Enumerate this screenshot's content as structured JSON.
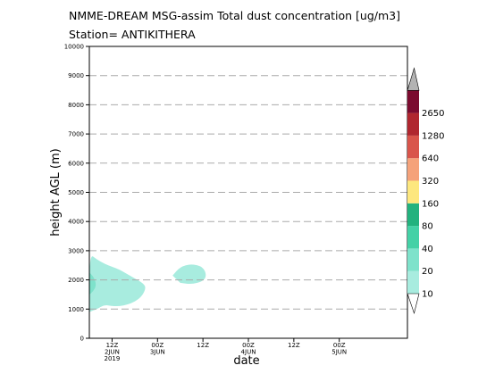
{
  "title_line1": "NMME-DREAM MSG-assim Total dust concentration [ug/m3]",
  "title_line2": "Station= ANTIKITHERA",
  "chart_data": {
    "type": "contour",
    "xlabel": "date",
    "ylabel": "height AGL (m)",
    "ylim": [
      0,
      10000
    ],
    "yticks": [
      0,
      1000,
      2000,
      3000,
      4000,
      5000,
      6000,
      7000,
      8000,
      9000,
      10000
    ],
    "xlim_hours": [
      0,
      84
    ],
    "xticks": [
      {
        "hour": 6,
        "lines": [
          "12Z",
          "2JUN",
          "2019"
        ]
      },
      {
        "hour": 18,
        "lines": [
          "00Z",
          "3JUN"
        ]
      },
      {
        "hour": 30,
        "lines": [
          "12Z"
        ]
      },
      {
        "hour": 42,
        "lines": [
          "00Z",
          "4JUN"
        ]
      },
      {
        "hour": 54,
        "lines": [
          "12Z"
        ]
      },
      {
        "hour": 66,
        "lines": [
          "00Z",
          "5JUN"
        ]
      }
    ],
    "grid": "dashed horizontal",
    "colorbar": {
      "levels": [
        10,
        20,
        40,
        80,
        160,
        320,
        640,
        1280,
        2650
      ],
      "colors": [
        "#a8ecdf",
        "#7ee2cb",
        "#44d1a6",
        "#22b27e",
        "#fde77e",
        "#f5a27a",
        "#d9554b",
        "#b0272f",
        "#7b0b2f",
        "#a47cb0",
        "#b3b3b3"
      ]
    },
    "regions": [
      {
        "level_band": "10-20",
        "points": [
          [
            0,
            900
          ],
          [
            0,
            2900
          ],
          [
            2,
            2700
          ],
          [
            4,
            2550
          ],
          [
            6,
            2450
          ],
          [
            8,
            2350
          ],
          [
            10,
            2200
          ],
          [
            12,
            2050
          ],
          [
            14,
            1900
          ],
          [
            15,
            1750
          ],
          [
            14,
            1450
          ],
          [
            12,
            1250
          ],
          [
            10,
            1150
          ],
          [
            8,
            1100
          ],
          [
            6,
            1100
          ],
          [
            4,
            1150
          ],
          [
            2,
            1000
          ],
          [
            1,
            950
          ]
        ]
      },
      {
        "level_band": "10-20",
        "points": [
          [
            22,
            2150
          ],
          [
            24,
            2450
          ],
          [
            27,
            2550
          ],
          [
            30,
            2450
          ],
          [
            31,
            2150
          ],
          [
            30,
            1950
          ],
          [
            27,
            1850
          ],
          [
            24,
            1900
          ]
        ]
      },
      {
        "level_band": "20-40",
        "points": [
          [
            0,
            1500
          ],
          [
            1,
            1600
          ],
          [
            1.8,
            1800
          ],
          [
            1.5,
            2000
          ],
          [
            0.8,
            2150
          ],
          [
            0,
            2250
          ]
        ]
      }
    ]
  }
}
